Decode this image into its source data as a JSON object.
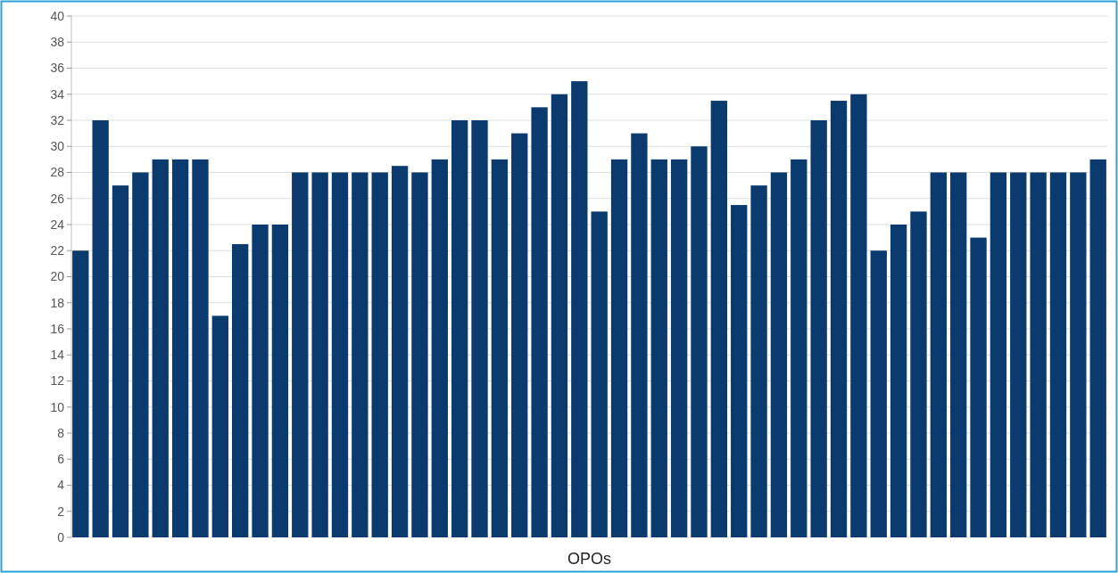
{
  "chart_data": {
    "type": "bar",
    "xlabel": "OPOs",
    "categories": [
      null,
      null,
      null,
      null,
      null,
      null,
      null,
      null,
      null,
      null,
      null,
      null,
      null,
      null,
      null,
      null,
      null,
      null,
      null,
      null,
      null,
      null,
      null,
      null,
      null,
      null,
      null,
      null,
      null,
      null,
      null,
      null,
      null,
      null,
      null,
      null,
      null,
      null,
      null,
      null,
      null,
      null,
      null,
      null,
      null,
      null,
      null,
      null,
      null,
      null,
      null,
      null
    ],
    "values": [
      22,
      32,
      27,
      28,
      29,
      29,
      29,
      17,
      22.5,
      24,
      24,
      28,
      28,
      28,
      28,
      28,
      28.5,
      28,
      29,
      32,
      32,
      29,
      31,
      33,
      34,
      35,
      25,
      29,
      31,
      29,
      29,
      30,
      33.5,
      25.5,
      27,
      28,
      29,
      32,
      33.5,
      34,
      22,
      24,
      25,
      28,
      28,
      23,
      28,
      28,
      28,
      28,
      28,
      29
    ],
    "color": "#0b3a6f",
    "ylim": [
      0,
      40
    ],
    "yticks": [
      0,
      2,
      4,
      6,
      8,
      10,
      12,
      14,
      16,
      18,
      20,
      22,
      24,
      26,
      28,
      30,
      32,
      34,
      36,
      38,
      40
    ],
    "grid": "y"
  }
}
